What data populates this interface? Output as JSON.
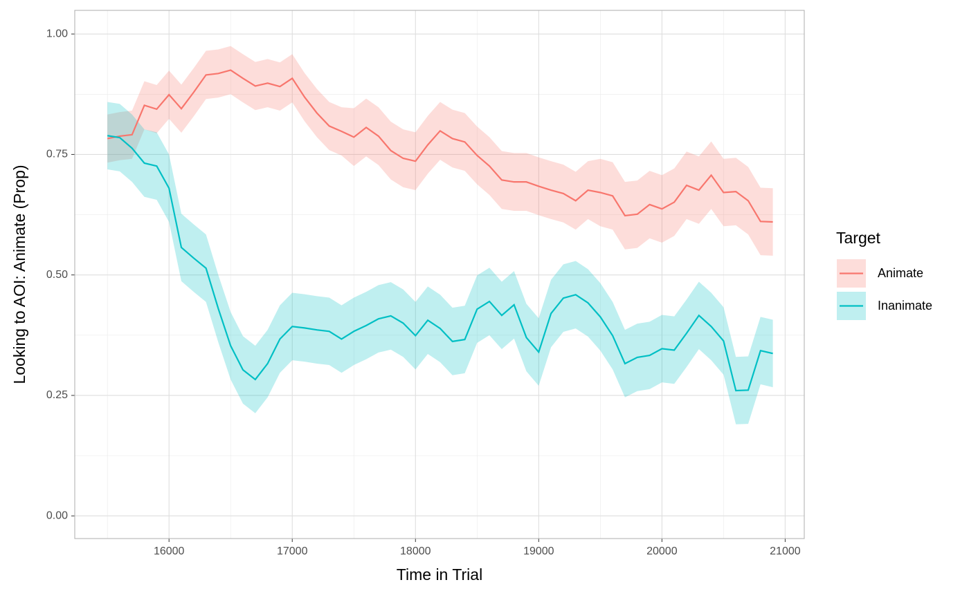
{
  "chart_data": {
    "type": "line-ribbon",
    "x_label": "Time in Trial",
    "y_label": "Looking to AOI:  Animate (Prop)",
    "legend_title": "Target",
    "legend_position": "right",
    "grid": true,
    "xlim": [
      15235,
      21155
    ],
    "ylim": [
      -0.047,
      1.049
    ],
    "xticks": [
      16000,
      17000,
      18000,
      19000,
      20000,
      21000
    ],
    "yticks": [
      {
        "value": 0,
        "label": "0.00"
      },
      {
        "value": 0.25,
        "label": "0.25"
      },
      {
        "value": 0.5,
        "label": "0.50"
      },
      {
        "value": 0.75,
        "label": "0.75"
      },
      {
        "value": 1,
        "label": "1.00"
      }
    ],
    "x": [
      15500,
      15600,
      15700,
      15800,
      15900,
      16000,
      16100,
      16200,
      16300,
      16400,
      16500,
      16600,
      16700,
      16800,
      16900,
      17000,
      17100,
      17200,
      17300,
      17400,
      17500,
      17600,
      17700,
      17800,
      17900,
      18000,
      18100,
      18200,
      18300,
      18400,
      18500,
      18600,
      18700,
      18800,
      18900,
      19000,
      19100,
      19200,
      19300,
      19400,
      19500,
      19600,
      19700,
      19800,
      19900,
      20000,
      20100,
      20200,
      20300,
      20400,
      20500,
      20600,
      20700,
      20800,
      20900
    ],
    "series": [
      {
        "name": "Animate",
        "color": "#f8766d",
        "values": [
          0.783,
          0.788,
          0.791,
          0.852,
          0.844,
          0.874,
          0.845,
          0.879,
          0.915,
          0.918,
          0.925,
          0.908,
          0.892,
          0.898,
          0.891,
          0.908,
          0.869,
          0.836,
          0.809,
          0.798,
          0.786,
          0.806,
          0.788,
          0.758,
          0.742,
          0.736,
          0.77,
          0.799,
          0.783,
          0.776,
          0.748,
          0.726,
          0.697,
          0.693,
          0.693,
          0.684,
          0.676,
          0.669,
          0.654,
          0.676,
          0.671,
          0.664,
          0.623,
          0.626,
          0.646,
          0.637,
          0.651,
          0.686,
          0.676,
          0.707,
          0.671,
          0.673,
          0.654,
          0.611,
          0.61
        ],
        "lower": [
          0.733,
          0.738,
          0.741,
          0.802,
          0.794,
          0.824,
          0.795,
          0.829,
          0.865,
          0.868,
          0.875,
          0.858,
          0.842,
          0.848,
          0.841,
          0.858,
          0.819,
          0.786,
          0.759,
          0.748,
          0.726,
          0.746,
          0.728,
          0.698,
          0.682,
          0.676,
          0.71,
          0.739,
          0.723,
          0.716,
          0.688,
          0.666,
          0.637,
          0.633,
          0.633,
          0.624,
          0.616,
          0.609,
          0.594,
          0.616,
          0.601,
          0.594,
          0.553,
          0.556,
          0.576,
          0.567,
          0.581,
          0.616,
          0.606,
          0.637,
          0.601,
          0.603,
          0.584,
          0.541,
          0.54
        ],
        "upper": [
          0.833,
          0.838,
          0.841,
          0.902,
          0.894,
          0.924,
          0.895,
          0.929,
          0.965,
          0.968,
          0.975,
          0.958,
          0.942,
          0.948,
          0.941,
          0.958,
          0.919,
          0.886,
          0.859,
          0.848,
          0.846,
          0.866,
          0.848,
          0.818,
          0.802,
          0.796,
          0.83,
          0.859,
          0.843,
          0.836,
          0.808,
          0.786,
          0.757,
          0.753,
          0.753,
          0.744,
          0.736,
          0.729,
          0.714,
          0.736,
          0.741,
          0.734,
          0.693,
          0.696,
          0.716,
          0.707,
          0.721,
          0.756,
          0.746,
          0.777,
          0.741,
          0.743,
          0.724,
          0.681,
          0.68
        ]
      },
      {
        "name": "Inanimate",
        "color": "#00bfc4",
        "values": [
          0.789,
          0.785,
          0.763,
          0.732,
          0.726,
          0.68,
          0.557,
          0.535,
          0.514,
          0.43,
          0.353,
          0.303,
          0.283,
          0.316,
          0.367,
          0.393,
          0.39,
          0.386,
          0.383,
          0.367,
          0.383,
          0.395,
          0.409,
          0.415,
          0.4,
          0.374,
          0.406,
          0.389,
          0.362,
          0.366,
          0.429,
          0.445,
          0.416,
          0.438,
          0.37,
          0.34,
          0.42,
          0.452,
          0.459,
          0.442,
          0.413,
          0.374,
          0.316,
          0.329,
          0.333,
          0.347,
          0.344,
          0.379,
          0.416,
          0.393,
          0.363,
          0.26,
          0.261,
          0.343,
          0.337
        ],
        "lower": [
          0.719,
          0.715,
          0.693,
          0.662,
          0.656,
          0.61,
          0.487,
          0.465,
          0.444,
          0.36,
          0.283,
          0.233,
          0.213,
          0.246,
          0.297,
          0.323,
          0.32,
          0.316,
          0.313,
          0.297,
          0.313,
          0.325,
          0.339,
          0.345,
          0.33,
          0.304,
          0.336,
          0.319,
          0.292,
          0.296,
          0.359,
          0.375,
          0.346,
          0.368,
          0.3,
          0.27,
          0.35,
          0.382,
          0.389,
          0.372,
          0.343,
          0.304,
          0.246,
          0.259,
          0.263,
          0.277,
          0.274,
          0.309,
          0.346,
          0.323,
          0.293,
          0.19,
          0.191,
          0.273,
          0.267
        ],
        "upper": [
          0.859,
          0.855,
          0.833,
          0.802,
          0.796,
          0.75,
          0.627,
          0.605,
          0.584,
          0.5,
          0.423,
          0.373,
          0.353,
          0.386,
          0.437,
          0.463,
          0.46,
          0.456,
          0.453,
          0.437,
          0.453,
          0.465,
          0.479,
          0.485,
          0.47,
          0.444,
          0.476,
          0.459,
          0.432,
          0.436,
          0.499,
          0.515,
          0.486,
          0.508,
          0.44,
          0.41,
          0.49,
          0.522,
          0.529,
          0.512,
          0.483,
          0.444,
          0.386,
          0.399,
          0.403,
          0.417,
          0.414,
          0.449,
          0.486,
          0.463,
          0.433,
          0.33,
          0.331,
          0.413,
          0.407
        ]
      }
    ]
  }
}
